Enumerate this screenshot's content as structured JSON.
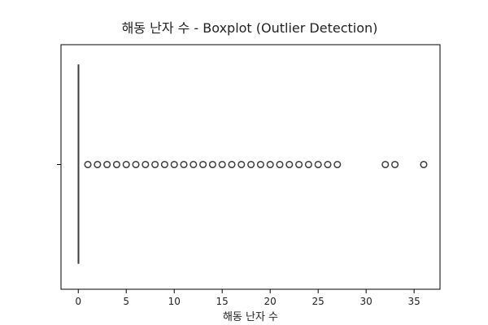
{
  "chart_data": {
    "type": "boxplot",
    "title": "해동 난자 수 - Boxplot (Outlier Detection)",
    "xlabel": "해동 난자 수",
    "ylabel": "",
    "orientation": "horizontal",
    "xlim": [
      -1.8,
      37.7
    ],
    "x_ticks": [
      0,
      5,
      10,
      15,
      20,
      25,
      30,
      35
    ],
    "x_tick_labels": [
      "0",
      "5",
      "10",
      "15",
      "20",
      "25",
      "30",
      "35"
    ],
    "box": {
      "q1": 0,
      "median": 0,
      "q3": 0,
      "whisker_low": 0,
      "whisker_high": 0
    },
    "outliers": [
      1,
      2,
      3,
      4,
      5,
      6,
      7,
      8,
      9,
      10,
      11,
      12,
      13,
      14,
      15,
      16,
      17,
      18,
      19,
      20,
      21,
      22,
      23,
      24,
      25,
      26,
      27,
      32,
      33,
      36
    ],
    "colors": {
      "line": "#3d3d3d",
      "outlier": "#3d3d3d",
      "axes": "#000000"
    },
    "grid": false,
    "legend": "none"
  }
}
